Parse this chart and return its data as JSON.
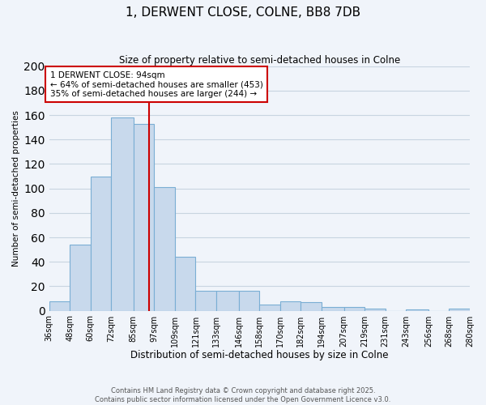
{
  "title": "1, DERWENT CLOSE, COLNE, BB8 7DB",
  "subtitle": "Size of property relative to semi-detached houses in Colne",
  "xlabel": "Distribution of semi-detached houses by size in Colne",
  "ylabel": "Number of semi-detached properties",
  "bin_labels": [
    "36sqm",
    "48sqm",
    "60sqm",
    "72sqm",
    "85sqm",
    "97sqm",
    "109sqm",
    "121sqm",
    "133sqm",
    "146sqm",
    "158sqm",
    "170sqm",
    "182sqm",
    "194sqm",
    "207sqm",
    "219sqm",
    "231sqm",
    "243sqm",
    "256sqm",
    "268sqm",
    "280sqm"
  ],
  "bin_edges": [
    36,
    48,
    60,
    72,
    85,
    97,
    109,
    121,
    133,
    146,
    158,
    170,
    182,
    194,
    207,
    219,
    231,
    243,
    256,
    268,
    280
  ],
  "bar_heights": [
    8,
    54,
    110,
    158,
    153,
    101,
    44,
    16,
    16,
    16,
    5,
    8,
    7,
    3,
    3,
    2,
    0,
    1,
    0,
    2
  ],
  "bar_color": "#c8d9ec",
  "bar_edge_color": "#7aaed4",
  "property_value": 94,
  "vline_color": "#cc0000",
  "annotation_title": "1 DERWENT CLOSE: 94sqm",
  "annotation_line1": "← 64% of semi-detached houses are smaller (453)",
  "annotation_line2": "35% of semi-detached houses are larger (244) →",
  "annotation_box_color": "#ffffff",
  "annotation_box_edge": "#cc0000",
  "ylim": [
    0,
    200
  ],
  "yticks": [
    0,
    20,
    40,
    60,
    80,
    100,
    120,
    140,
    160,
    180,
    200
  ],
  "footer_line1": "Contains HM Land Registry data © Crown copyright and database right 2025.",
  "footer_line2": "Contains public sector information licensed under the Open Government Licence v3.0.",
  "bg_color": "#f0f4fa",
  "grid_color": "#c8d4e0"
}
